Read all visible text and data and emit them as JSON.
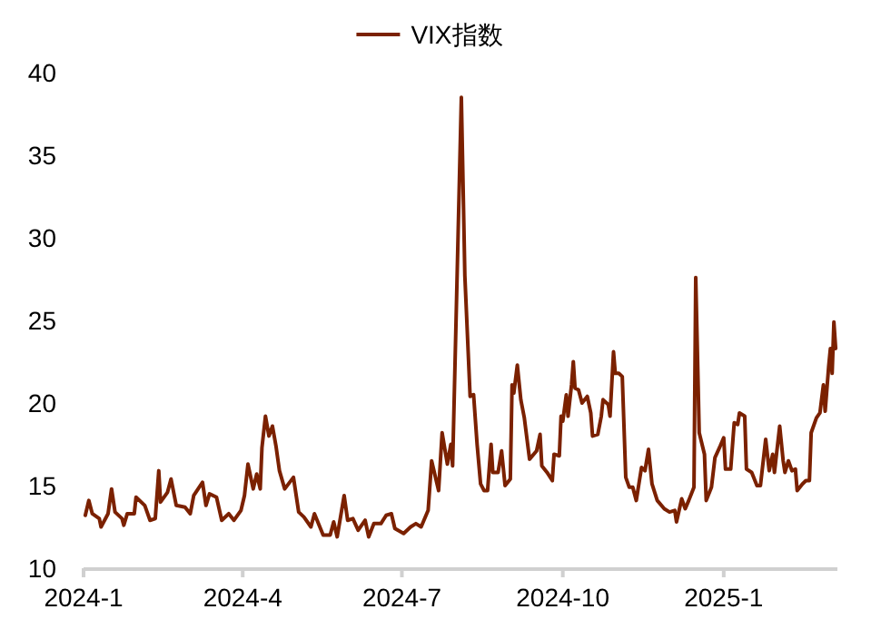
{
  "chart_data": {
    "type": "line",
    "legend": "top",
    "line_style": "solid",
    "x": [
      "2024-01-02",
      "2024-01-04",
      "2024-01-06",
      "2024-01-10",
      "2024-01-11",
      "2024-01-15",
      "2024-01-17",
      "2024-01-19",
      "2024-01-23",
      "2024-01-24",
      "2024-01-26",
      "2024-01-30",
      "2024-01-31",
      "2024-02-05",
      "2024-02-08",
      "2024-02-11",
      "2024-02-13",
      "2024-02-14",
      "2024-02-18",
      "2024-02-20",
      "2024-02-23",
      "2024-02-28",
      "2024-03-02",
      "2024-03-04",
      "2024-03-09",
      "2024-03-11",
      "2024-03-13",
      "2024-03-17",
      "2024-03-20",
      "2024-03-24",
      "2024-03-27",
      "2024-03-31",
      "2024-04-02",
      "2024-04-04",
      "2024-04-07",
      "2024-04-09",
      "2024-04-11",
      "2024-04-12",
      "2024-04-14",
      "2024-04-16",
      "2024-04-18",
      "2024-04-20",
      "2024-04-22",
      "2024-04-25",
      "2024-04-30",
      "2024-05-03",
      "2024-05-06",
      "2024-05-10",
      "2024-05-12",
      "2024-05-17",
      "2024-05-21",
      "2024-05-23",
      "2024-05-25",
      "2024-05-29",
      "2024-05-31",
      "2024-06-03",
      "2024-06-06",
      "2024-06-10",
      "2024-06-12",
      "2024-06-15",
      "2024-06-19",
      "2024-06-22",
      "2024-06-25",
      "2024-06-27",
      "2024-07-02",
      "2024-07-06",
      "2024-07-09",
      "2024-07-12",
      "2024-07-16",
      "2024-07-18",
      "2024-07-22",
      "2024-07-24",
      "2024-07-27",
      "2024-07-29",
      "2024-07-30",
      "2024-08-04",
      "2024-08-06",
      "2024-08-09",
      "2024-08-11",
      "2024-08-13",
      "2024-08-15",
      "2024-08-17",
      "2024-08-19",
      "2024-08-21",
      "2024-08-22",
      "2024-08-25",
      "2024-08-27",
      "2024-08-29",
      "2024-09-01",
      "2024-09-02",
      "2024-09-03",
      "2024-09-05",
      "2024-09-07",
      "2024-09-09",
      "2024-09-12",
      "2024-09-16",
      "2024-09-18",
      "2024-09-19",
      "2024-09-22",
      "2024-09-25",
      "2024-09-26",
      "2024-09-29",
      "2024-09-30",
      "2024-10-01",
      "2024-10-03",
      "2024-10-04",
      "2024-10-06",
      "2024-10-07",
      "2024-10-08",
      "2024-10-10",
      "2024-10-12",
      "2024-10-15",
      "2024-10-17",
      "2024-10-18",
      "2024-10-21",
      "2024-10-23",
      "2024-10-24",
      "2024-10-27",
      "2024-10-28",
      "2024-10-30",
      "2024-10-31",
      "2024-11-02",
      "2024-11-04",
      "2024-11-06",
      "2024-11-08",
      "2024-11-10",
      "2024-11-12",
      "2024-11-15",
      "2024-11-17",
      "2024-11-19",
      "2024-11-21",
      "2024-11-24",
      "2024-11-28",
      "2024-12-01",
      "2024-12-04",
      "2024-12-05",
      "2024-12-08",
      "2024-12-10",
      "2024-12-12",
      "2024-12-15",
      "2024-12-16",
      "2024-12-18",
      "2024-12-21",
      "2024-12-22",
      "2024-12-25",
      "2024-12-27",
      "2024-12-30",
      "2025-01-01",
      "2025-01-02",
      "2025-01-05",
      "2025-01-07",
      "2025-01-09",
      "2025-01-10",
      "2025-01-13",
      "2025-01-14",
      "2025-01-17",
      "2025-01-20",
      "2025-01-22",
      "2025-01-25",
      "2025-01-27",
      "2025-01-29",
      "2025-01-30",
      "2025-02-02",
      "2025-02-04",
      "2025-02-05",
      "2025-02-07",
      "2025-02-09",
      "2025-02-11",
      "2025-02-12",
      "2025-02-15",
      "2025-02-17",
      "2025-02-19",
      "2025-02-20",
      "2025-02-23",
      "2025-02-25",
      "2025-02-27",
      "2025-02-28",
      "2025-03-02",
      "2025-03-03",
      "2025-03-04",
      "2025-03-05",
      "2025-03-06"
    ],
    "series": [
      {
        "name": "VIX指数",
        "color": "#7b2100",
        "values": [
          13.2,
          14.1,
          13.3,
          13.0,
          12.5,
          13.3,
          14.8,
          13.4,
          13.0,
          12.6,
          13.3,
          13.3,
          14.3,
          13.8,
          12.9,
          13.0,
          15.9,
          14.0,
          14.6,
          15.4,
          13.8,
          13.7,
          13.3,
          14.4,
          15.2,
          13.8,
          14.5,
          14.3,
          12.9,
          13.3,
          12.9,
          13.5,
          14.4,
          16.3,
          14.8,
          15.7,
          14.8,
          17.3,
          19.2,
          18.0,
          18.6,
          17.4,
          15.9,
          14.8,
          15.5,
          13.4,
          13.1,
          12.5,
          13.3,
          12.0,
          12.0,
          12.8,
          11.9,
          14.4,
          12.9,
          13.0,
          12.3,
          12.9,
          11.9,
          12.7,
          12.7,
          13.2,
          13.3,
          12.4,
          12.1,
          12.5,
          12.7,
          12.5,
          13.5,
          16.5,
          14.7,
          18.2,
          16.3,
          17.5,
          16.2,
          38.5,
          27.7,
          20.4,
          20.5,
          17.5,
          15.1,
          14.7,
          14.7,
          17.5,
          15.8,
          15.8,
          17.1,
          15.0,
          15.4,
          21.1,
          20.6,
          22.3,
          20.2,
          19.1,
          16.6,
          17.1,
          18.1,
          16.2,
          15.8,
          15.3,
          16.9,
          16.8,
          19.2,
          18.9,
          20.5,
          19.2,
          21.1,
          22.5,
          20.9,
          20.8,
          20.0,
          20.4,
          19.4,
          18.0,
          18.1,
          19.2,
          20.2,
          19.9,
          19.2,
          23.1,
          21.8,
          21.8,
          21.6,
          15.5,
          14.9,
          14.9,
          14.1,
          16.1,
          15.9,
          17.2,
          15.1,
          14.1,
          13.6,
          13.4,
          13.5,
          12.8,
          14.2,
          13.6,
          14.1,
          14.9,
          27.6,
          18.2,
          16.9,
          14.1,
          14.9,
          16.7,
          17.4,
          17.9,
          16.0,
          16.0,
          18.8,
          18.7,
          19.4,
          19.2,
          16.0,
          15.8,
          15.0,
          15.0,
          17.8,
          15.9,
          16.9,
          15.8,
          18.6,
          16.5,
          15.8,
          16.5,
          15.9,
          16.0,
          14.7,
          15.1,
          15.3,
          15.3,
          18.2,
          19.1,
          19.4,
          21.1,
          19.5,
          22.2,
          23.3,
          21.8,
          24.9,
          23.3
        ]
      }
    ],
    "xlim": [
      "2024-01-01",
      "2025-03-07"
    ],
    "xticks": [
      {
        "value": "2024-01-01",
        "label": "2024-1"
      },
      {
        "value": "2024-04-01",
        "label": "2024-4"
      },
      {
        "value": "2024-07-01",
        "label": "2024-7"
      },
      {
        "value": "2024-10-01",
        "label": "2024-10"
      },
      {
        "value": "2025-01-01",
        "label": "2025-1"
      }
    ],
    "ylim": [
      10,
      40
    ],
    "yticks": [
      10,
      15,
      20,
      25,
      30,
      35,
      40
    ]
  }
}
